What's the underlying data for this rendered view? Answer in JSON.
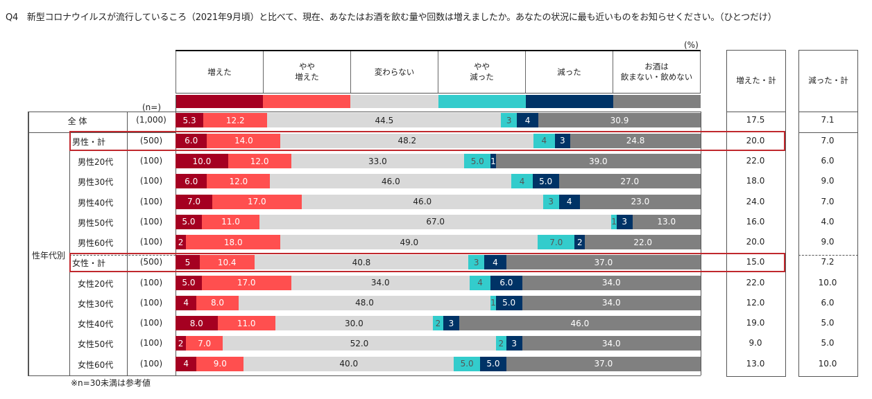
{
  "title": "Q4　新型コロナウイルスが流行しているころ（2021年9月頃）と比べて、現在、あなたはお酒を飲む量や回数は増えましたか。あなたの状況に最も近いものをお知らせください。（ひとつだけ）",
  "unit_label": "(%)",
  "n_caption": "(n=)",
  "group_label": "性年代別",
  "footnote": "※n=30未満は参考値",
  "colors": {
    "increased": "#a50021",
    "slightly_increased": "#ff4f4f",
    "no_change": "#d9d9d9",
    "slightly_decreased": "#33cccc",
    "decreased": "#003366",
    "dont_drink": "#808080",
    "highlight": "#c0282d"
  },
  "chart_data": {
    "type": "bar",
    "orientation": "horizontal-stacked-100",
    "title": "Q4　新型コロナウイルスが流行しているころ（2021年9月頃）と比べて、現在、あなたはお酒を飲む量や回数は増えましたか。",
    "xlabel": "(%)",
    "ylabel": "",
    "xlim": [
      0,
      100
    ],
    "legend": [
      "増えた",
      "やや\n増えた",
      "変わらない",
      "やや\n減った",
      "減った",
      "お酒は\n飲まない・飲めない"
    ],
    "legend_position": "top",
    "categories": [
      "全 体",
      "男性・計",
      "男性20代",
      "男性30代",
      "男性40代",
      "男性50代",
      "男性60代",
      "女性・計",
      "女性20代",
      "女性30代",
      "女性40代",
      "女性50代",
      "女性60代"
    ],
    "n": [
      "(1,000)",
      "(500)",
      "(100)",
      "(100)",
      "(100)",
      "(100)",
      "(100)",
      "(500)",
      "(100)",
      "(100)",
      "(100)",
      "(100)",
      "(100)"
    ],
    "series": [
      {
        "name": "増えた",
        "values": [
          5.3,
          6.0,
          10.0,
          6.0,
          7.0,
          5.0,
          2.0,
          4.6,
          5.0,
          4.0,
          8.0,
          2.0,
          4.0
        ],
        "labels": [
          "5.3",
          "6.0",
          "10.0",
          "6.0",
          "7.0",
          "5.0",
          "2",
          "5",
          "5.0",
          "4",
          "8.0",
          "2",
          "4"
        ]
      },
      {
        "name": "やや増えた",
        "values": [
          12.2,
          14.0,
          12.0,
          12.0,
          17.0,
          11.0,
          18.0,
          10.4,
          17.0,
          8.0,
          11.0,
          7.0,
          9.0
        ],
        "labels": [
          "12.2",
          "14.0",
          "12.0",
          "12.0",
          "17.0",
          "11.0",
          "18.0",
          "10.4",
          "17.0",
          "8.0",
          "11.0",
          "7.0",
          "9.0"
        ]
      },
      {
        "name": "変わらない",
        "values": [
          44.5,
          48.2,
          33.0,
          46.0,
          46.0,
          67.0,
          49.0,
          40.8,
          34.0,
          48.0,
          30.0,
          52.0,
          40.0
        ],
        "labels": [
          "44.5",
          "48.2",
          "33.0",
          "46.0",
          "46.0",
          "67.0",
          "49.0",
          "40.8",
          "34.0",
          "48.0",
          "30.0",
          "52.0",
          "40.0"
        ]
      },
      {
        "name": "やや減った",
        "values": [
          3.0,
          4.0,
          5.0,
          4.0,
          3.0,
          1.0,
          7.0,
          3.0,
          4.0,
          1.0,
          2.0,
          2.0,
          5.0
        ],
        "labels": [
          "3",
          "4",
          "5.0",
          "4",
          "3",
          "1",
          "7.0",
          "3",
          "4",
          "1",
          "2",
          "2",
          "5.0"
        ]
      },
      {
        "name": "減った",
        "values": [
          4.1,
          3.0,
          1.0,
          5.0,
          4.0,
          3.0,
          2.0,
          4.2,
          6.0,
          5.0,
          3.0,
          3.0,
          5.0
        ],
        "labels": [
          "4",
          "3",
          "1",
          "5.0",
          "4",
          "3",
          "2",
          "4",
          "6.0",
          "5.0",
          "3",
          "3",
          "5.0"
        ]
      },
      {
        "name": "お酒は飲まない・飲めない",
        "values": [
          30.9,
          24.8,
          39.0,
          27.0,
          23.0,
          13.0,
          22.0,
          37.0,
          34.0,
          34.0,
          46.0,
          34.0,
          37.0
        ],
        "labels": [
          "30.9",
          "24.8",
          "39.0",
          "27.0",
          "23.0",
          "13.0",
          "22.0",
          "37.0",
          "34.0",
          "34.0",
          "46.0",
          "34.0",
          "37.0"
        ]
      }
    ],
    "summary_columns": [
      {
        "name": "増えた・計",
        "values": [
          "17.5",
          "20.0",
          "22.0",
          "18.0",
          "24.0",
          "16.0",
          "20.0",
          "15.0",
          "22.0",
          "12.0",
          "19.0",
          "9.0",
          "13.0"
        ]
      },
      {
        "name": "減った・計",
        "values": [
          "7.1",
          "7.0",
          "6.0",
          "9.0",
          "7.0",
          "4.0",
          "9.0",
          "7.2",
          "10.0",
          "6.0",
          "5.0",
          "5.0",
          "10.0"
        ]
      }
    ],
    "highlighted_rows": [
      "男性・計",
      "女性・計"
    ]
  }
}
